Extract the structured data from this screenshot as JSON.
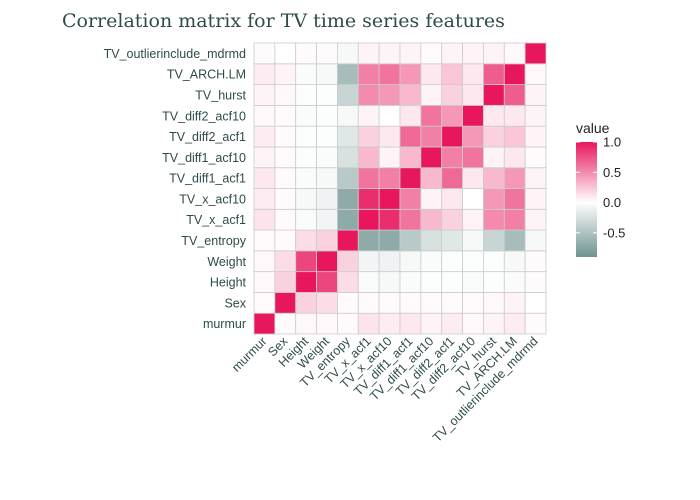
{
  "chart_data": {
    "type": "heatmap",
    "title": "Correlation matrix for TV time series features",
    "variables": [
      "murmur",
      "Sex",
      "Height",
      "Weight",
      "TV_entropy",
      "TV_x_acf1",
      "TV_x_acf10",
      "TV_diff1_acf1",
      "TV_diff1_acf10",
      "TV_diff2_acf1",
      "TV_diff2_acf10",
      "TV_hurst",
      "TV_ARCH.LM",
      "TV_outlierinclude_mdrmd"
    ],
    "matrix": [
      [
        1.0,
        0.02,
        0.03,
        0.03,
        0.02,
        0.12,
        0.08,
        0.1,
        0.05,
        0.08,
        0.03,
        0.05,
        0.08,
        0.02
      ],
      [
        0.02,
        1.0,
        0.2,
        0.15,
        0.02,
        0.02,
        0.02,
        0.02,
        0.02,
        0.02,
        0.02,
        0.03,
        0.05,
        0.0
      ],
      [
        0.03,
        0.2,
        1.0,
        0.8,
        0.15,
        -0.03,
        -0.05,
        -0.03,
        -0.02,
        -0.02,
        -0.03,
        -0.02,
        -0.03,
        0.02
      ],
      [
        0.03,
        0.15,
        0.8,
        1.0,
        0.2,
        -0.08,
        -0.1,
        -0.05,
        -0.03,
        -0.02,
        -0.02,
        -0.02,
        -0.05,
        0.02
      ],
      [
        0.02,
        0.02,
        0.15,
        0.2,
        1.0,
        -0.7,
        -0.7,
        -0.45,
        -0.25,
        -0.2,
        -0.05,
        -0.35,
        -0.55,
        -0.05
      ],
      [
        0.12,
        0.02,
        -0.03,
        -0.08,
        -0.7,
        1.0,
        0.9,
        0.6,
        0.3,
        0.2,
        0.05,
        0.5,
        0.55,
        0.05
      ],
      [
        0.08,
        0.02,
        -0.05,
        -0.1,
        -0.7,
        0.9,
        1.0,
        0.55,
        0.05,
        0.1,
        0.0,
        0.45,
        0.6,
        0.05
      ],
      [
        0.1,
        0.02,
        -0.03,
        -0.05,
        -0.45,
        0.6,
        0.55,
        1.0,
        0.3,
        0.65,
        0.1,
        0.3,
        0.45,
        0.05
      ],
      [
        0.05,
        0.02,
        -0.02,
        -0.03,
        -0.25,
        0.3,
        0.05,
        0.3,
        1.0,
        0.55,
        0.6,
        0.05,
        0.1,
        0.02
      ],
      [
        0.08,
        0.02,
        -0.02,
        -0.02,
        -0.2,
        0.2,
        0.1,
        0.65,
        0.55,
        1.0,
        0.45,
        0.2,
        0.25,
        0.05
      ],
      [
        0.03,
        0.02,
        -0.03,
        -0.02,
        -0.05,
        0.05,
        0.0,
        0.1,
        0.6,
        0.45,
        1.0,
        0.1,
        0.1,
        0.05
      ],
      [
        0.05,
        0.03,
        -0.02,
        -0.02,
        -0.35,
        0.5,
        0.45,
        0.3,
        0.05,
        0.2,
        0.1,
        1.0,
        0.7,
        0.05
      ],
      [
        0.08,
        0.05,
        -0.03,
        -0.05,
        -0.55,
        0.55,
        0.6,
        0.45,
        0.1,
        0.25,
        0.1,
        0.7,
        1.0,
        0.03
      ],
      [
        0.02,
        0.0,
        0.02,
        0.02,
        -0.05,
        0.05,
        0.05,
        0.05,
        0.02,
        0.05,
        0.05,
        0.05,
        0.03,
        1.0
      ]
    ],
    "colorscale": {
      "low": "#6e9391",
      "mid": "#ffffff",
      "high": "#e8175d",
      "range": [
        -0.9,
        1.0
      ]
    },
    "legend": {
      "title": "value",
      "ticks": [
        1.0,
        0.5,
        0.0,
        -0.5
      ],
      "tick_labels": [
        "1.0",
        "0.5",
        "0.0",
        "-0.5"
      ],
      "position": "right"
    }
  }
}
